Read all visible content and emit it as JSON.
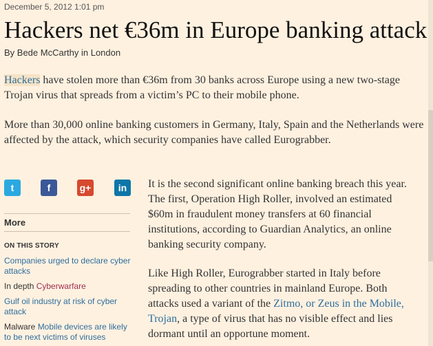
{
  "article": {
    "date": "December 5, 2012 1:01 pm",
    "headline": "Hackers net €36m in Europe banking attack",
    "byline": "By Bede McCarthy in London",
    "p1_link": "Hackers",
    "p1_rest": " have stolen more than €36m from 30 banks across Europe using a new two-stage Trojan virus that spreads from a victim’s PC to their mobile phone.",
    "p2": "More than 30,000 online banking customers in Germany, Italy, Spain and the Netherlands were affected by the attack, which security companies have called Eurograbber.",
    "p3": "It is the second significant online banking breach this year. The first, Operation High Roller, involved an estimated $60m in fraudulent money transfers at 60 financial institutions, according to Guardian Analytics, an online banking security company.",
    "p4_a": "Like High Roller, Eurograbber started in Italy before spreading to other countries in mainland Europe. Both attacks used a variant of the ",
    "p4_link": "Zitmo, or Zeus in the Mobile, Trojan",
    "p4_b": ", a type of virus that has no visible effect and lies dormant until an opportune moment."
  },
  "social": {
    "twitter_icon": "twitter-icon",
    "facebook_icon": "facebook-icon",
    "gplus_icon": "google-plus-icon",
    "linkedin_icon": "linkedin-icon",
    "twitter_glyph": "t",
    "facebook_glyph": "f",
    "gplus_glyph": "g+",
    "linkedin_glyph": "in"
  },
  "sidebar": {
    "more_label": "More",
    "on_this_story": "ON THIS STORY",
    "items": [
      {
        "prefix": "",
        "link": "Companies urged to declare cyber attacks"
      },
      {
        "prefix": "In depth ",
        "link": "Cyberwarfare"
      },
      {
        "prefix": "",
        "link": "Gulf oil industry at risk of cyber attack"
      },
      {
        "prefix": "Malware ",
        "link": "Mobile devices are likely to be next victims of viruses"
      }
    ]
  },
  "colors": {
    "background": "#fff1e0",
    "link": "#2e6e9e",
    "section_link": "#9e2f50"
  }
}
